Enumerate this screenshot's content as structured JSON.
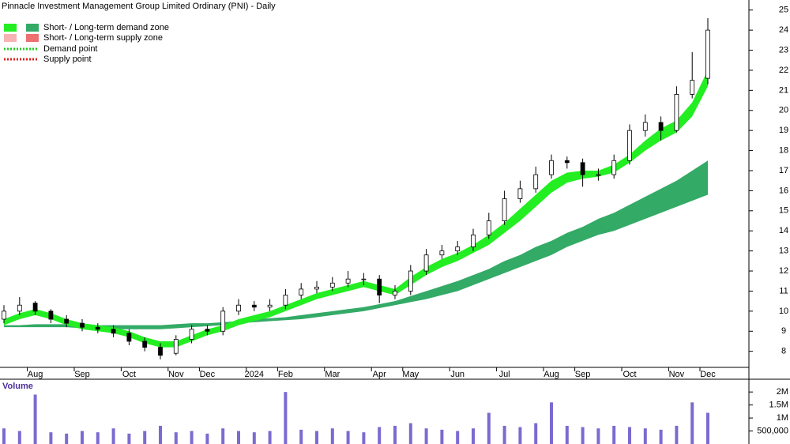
{
  "chart_data": [
    {
      "type": "candlestick",
      "title": "Pinnacle Investment Management Group Limited Ordinary (PNI) - Daily",
      "legend": [
        "Short- / Long-term demand zone",
        "Short- / Long-term supply zone",
        "Demand point",
        "Supply point"
      ],
      "categories": [
        null,
        null,
        "Aug",
        null,
        null,
        "Sep",
        null,
        null,
        "Oct",
        null,
        null,
        "Nov",
        null,
        "Dec",
        null,
        null,
        "2024",
        null,
        "Feb",
        null,
        null,
        "Mar",
        null,
        null,
        "Apr",
        null,
        "May",
        null,
        null,
        "Jun",
        null,
        null,
        "Jul",
        null,
        null,
        "Aug",
        null,
        "Sep",
        null,
        null,
        "Oct",
        null,
        null,
        "Nov",
        null,
        "Dec"
      ],
      "open": [
        9.6,
        10.0,
        10.4,
        10.0,
        9.6,
        9.4,
        9.2,
        9.1,
        8.9,
        8.5,
        8.2,
        7.9,
        8.6,
        9.1,
        9.0,
        10.0,
        10.3,
        10.2,
        10.3,
        10.8,
        11.1,
        11.2,
        11.4,
        11.6,
        11.6,
        10.8,
        11.0,
        12.0,
        12.8,
        13.0,
        13.2,
        13.8,
        14.5,
        15.6,
        16.1,
        16.8,
        17.5,
        17.4,
        16.8,
        16.8,
        17.5,
        19.0,
        19.4,
        19.0,
        20.8,
        21.6
      ],
      "high": [
        10.3,
        10.7,
        10.5,
        10.1,
        9.8,
        9.6,
        9.4,
        9.3,
        9.1,
        8.7,
        8.4,
        8.8,
        9.3,
        9.3,
        10.2,
        10.6,
        10.5,
        10.6,
        11.1,
        11.4,
        11.5,
        11.7,
        12.0,
        11.9,
        11.8,
        11.3,
        12.3,
        13.1,
        13.3,
        13.5,
        14.1,
        14.9,
        16.0,
        16.5,
        17.2,
        17.8,
        17.7,
        17.6,
        17.1,
        17.8,
        19.3,
        19.8,
        19.7,
        21.2,
        22.9,
        24.6
      ],
      "low": [
        9.4,
        9.8,
        9.8,
        9.4,
        9.2,
        9.0,
        8.9,
        8.7,
        8.3,
        8.0,
        7.6,
        7.8,
        8.4,
        8.8,
        8.8,
        9.8,
        10.0,
        10.0,
        10.1,
        10.6,
        10.9,
        11.0,
        11.2,
        11.3,
        10.4,
        10.6,
        10.8,
        11.8,
        12.6,
        12.8,
        13.0,
        13.6,
        14.3,
        15.4,
        15.9,
        16.6,
        17.1,
        16.2,
        16.5,
        16.6,
        17.3,
        18.7,
        18.5,
        18.9,
        20.6,
        21.3
      ],
      "close": [
        10.0,
        10.3,
        10.0,
        9.6,
        9.4,
        9.2,
        9.1,
        8.9,
        8.5,
        8.2,
        7.8,
        8.6,
        9.1,
        9.0,
        10.0,
        10.3,
        10.2,
        10.3,
        10.8,
        11.1,
        11.2,
        11.4,
        11.6,
        11.6,
        10.8,
        11.0,
        12.0,
        12.8,
        13.0,
        13.2,
        13.8,
        14.5,
        15.6,
        16.1,
        16.8,
        17.5,
        17.4,
        16.8,
        16.8,
        17.5,
        19.0,
        19.4,
        19.0,
        20.8,
        21.5,
        24.0
      ],
      "short_zone": {
        "color": "#22ee22",
        "upper": [
          9.6,
          9.9,
          10.1,
          9.9,
          9.6,
          9.4,
          9.3,
          9.2,
          9.0,
          8.7,
          8.5,
          8.5,
          8.8,
          9.1,
          9.3,
          9.6,
          9.8,
          10.0,
          10.3,
          10.6,
          10.9,
          11.1,
          11.3,
          11.5,
          11.3,
          11.1,
          11.7,
          12.2,
          12.6,
          12.9,
          13.3,
          13.8,
          14.4,
          15.1,
          15.8,
          16.5,
          16.9,
          17.0,
          17.0,
          17.3,
          17.8,
          18.5,
          19.1,
          19.5,
          20.4,
          22.0
        ],
        "lower": [
          9.3,
          9.6,
          9.8,
          9.6,
          9.3,
          9.1,
          9.0,
          8.9,
          8.7,
          8.4,
          8.2,
          8.2,
          8.5,
          8.8,
          9.0,
          9.3,
          9.5,
          9.7,
          10.0,
          10.3,
          10.6,
          10.8,
          11.0,
          11.2,
          11.0,
          10.8,
          11.3,
          11.8,
          12.2,
          12.5,
          12.9,
          13.3,
          13.9,
          14.5,
          15.2,
          15.9,
          16.4,
          16.6,
          16.7,
          16.9,
          17.4,
          18.0,
          18.5,
          18.9,
          19.7,
          21.2
        ]
      },
      "long_zone": {
        "color": "#33aa66",
        "upper": [
          9.3,
          9.3,
          9.35,
          9.35,
          9.35,
          9.35,
          9.3,
          9.3,
          9.3,
          9.3,
          9.3,
          9.35,
          9.4,
          9.4,
          9.45,
          9.5,
          9.6,
          9.65,
          9.7,
          9.8,
          9.9,
          10.0,
          10.1,
          10.2,
          10.35,
          10.5,
          10.75,
          11.0,
          11.25,
          11.5,
          11.8,
          12.1,
          12.5,
          12.8,
          13.2,
          13.5,
          13.9,
          14.2,
          14.6,
          14.9,
          15.3,
          15.7,
          16.1,
          16.5,
          17.0,
          17.5
        ],
        "lower": [
          9.2,
          9.2,
          9.2,
          9.2,
          9.2,
          9.15,
          9.15,
          9.1,
          9.1,
          9.1,
          9.1,
          9.15,
          9.2,
          9.25,
          9.3,
          9.4,
          9.45,
          9.5,
          9.55,
          9.6,
          9.7,
          9.8,
          9.9,
          10.0,
          10.15,
          10.3,
          10.45,
          10.6,
          10.8,
          11.0,
          11.3,
          11.6,
          11.9,
          12.2,
          12.5,
          12.8,
          13.2,
          13.5,
          13.8,
          14.0,
          14.3,
          14.6,
          14.9,
          15.2,
          15.5,
          15.8
        ]
      },
      "legend_colors": {
        "short_demand": "#22ee22",
        "long_demand": "#33aa66",
        "short_supply": "#f7b3b3",
        "long_supply": "#ee6f6f",
        "demand_point": "#22cc22",
        "supply_point": "#dd2222"
      },
      "ylim": [
        7.2,
        25.5
      ],
      "yticks": [
        8,
        9,
        10,
        11,
        12,
        13,
        14,
        15,
        16,
        17,
        18,
        19,
        20,
        21,
        22,
        23,
        24,
        25
      ]
    },
    {
      "type": "bar",
      "title": "Volume",
      "color": "#7a6bd0",
      "values": [
        600000,
        500000,
        1900000,
        450000,
        400000,
        500000,
        450000,
        600000,
        400000,
        500000,
        700000,
        450000,
        500000,
        400000,
        600000,
        500000,
        450000,
        500000,
        2000000,
        550000,
        500000,
        600000,
        500000,
        450000,
        650000,
        700000,
        800000,
        600000,
        550000,
        500000,
        600000,
        1200000,
        700000,
        650000,
        800000,
        1600000,
        700000,
        650000,
        600000,
        700000,
        650000,
        600000,
        550000,
        700000,
        1600000,
        1200000
      ],
      "ylim": [
        0,
        2400000
      ],
      "yticks": [
        {
          "value": 500000,
          "label": "500,000"
        },
        {
          "value": 1000000,
          "label": "1M"
        },
        {
          "value": 1500000,
          "label": "1.5M"
        },
        {
          "value": 2000000,
          "label": "2M"
        }
      ]
    }
  ]
}
